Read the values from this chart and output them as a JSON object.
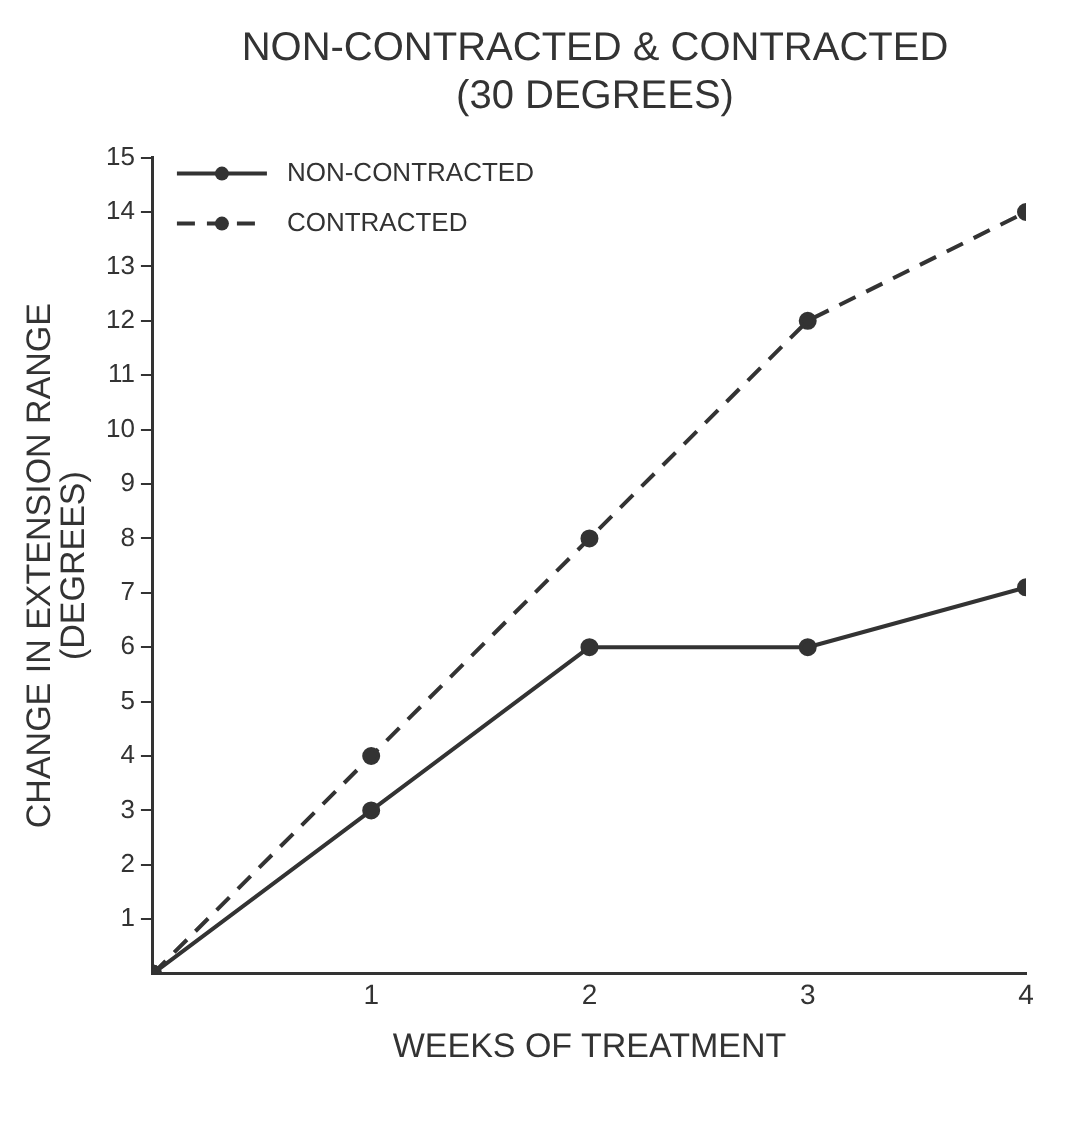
{
  "chart_data": {
    "type": "line",
    "title": "NON-CONTRACTED & CONTRACTED (30 DEGREES)",
    "xlabel": "WEEKS OF TREATMENT",
    "ylabel": "CHANGE IN EXTENSION RANGE (DEGREES)",
    "x": [
      0,
      1,
      2,
      3,
      4
    ],
    "xlim": [
      0,
      4
    ],
    "xticks": [
      1,
      2,
      3,
      4
    ],
    "ylim": [
      0,
      15
    ],
    "yticks": [
      1,
      2,
      3,
      4,
      5,
      6,
      7,
      8,
      9,
      10,
      11,
      12,
      13,
      14,
      15
    ],
    "series": [
      {
        "name": "NON-CONTRACTED",
        "color": "#333333",
        "values": [
          0,
          3,
          6,
          6,
          7.1
        ],
        "line_style": "solid"
      },
      {
        "name": "CONTRACTED",
        "color": "#333333",
        "values": [
          0,
          4,
          8,
          12,
          14
        ],
        "line_style": "dashed"
      }
    ],
    "marker": "circle",
    "grid": false,
    "legend": "top left"
  }
}
